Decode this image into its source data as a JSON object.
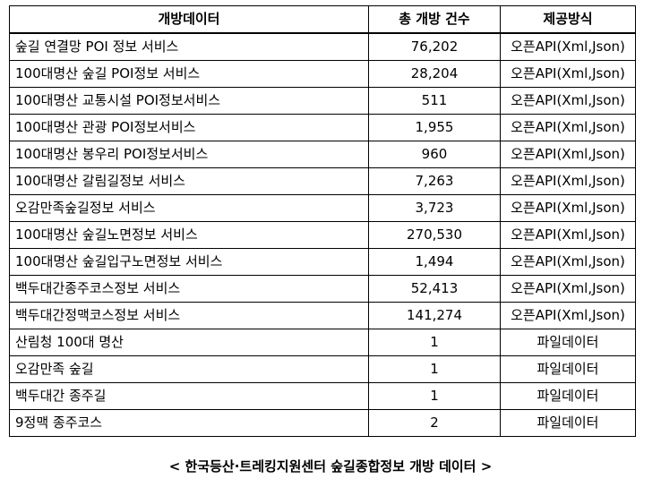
{
  "table": {
    "headers": [
      "개방데이터",
      "총 개방 건수",
      "제공방식"
    ],
    "rows": [
      {
        "name": "숲길 연결망 POI 정보 서비스",
        "count": "76,202",
        "method": "오픈API(Xml,Json)"
      },
      {
        "name": "100대명산 숲길 POI정보 서비스",
        "count": "28,204",
        "method": "오픈API(Xml,Json)"
      },
      {
        "name": "100대명산 교통시설 POI정보서비스",
        "count": "511",
        "method": "오픈API(Xml,Json)"
      },
      {
        "name": "100대명산 관광 POI정보서비스",
        "count": "1,955",
        "method": "오픈API(Xml,Json)"
      },
      {
        "name": "100대명산 봉우리 POI정보서비스",
        "count": "960",
        "method": "오픈API(Xml,Json)"
      },
      {
        "name": "100대명산 갈림길정보 서비스",
        "count": "7,263",
        "method": "오픈API(Xml,Json)"
      },
      {
        "name": "오감만족숲길정보 서비스",
        "count": "3,723",
        "method": "오픈API(Xml,Json)"
      },
      {
        "name": "100대명산 숲길노면정보 서비스",
        "count": "270,530",
        "method": "오픈API(Xml,Json)"
      },
      {
        "name": "100대명산 숲길입구노면정보 서비스",
        "count": "1,494",
        "method": "오픈API(Xml,Json)"
      },
      {
        "name": "백두대간종주코스정보 서비스",
        "count": "52,413",
        "method": "오픈API(Xml,Json)"
      },
      {
        "name": "백두대간정맥코스정보 서비스",
        "count": "141,274",
        "method": "오픈API(Xml,Json)"
      },
      {
        "name": "산림청 100대 명산",
        "count": "1",
        "method": "파일데이터"
      },
      {
        "name": "오감만족 숲길",
        "count": "1",
        "method": "파일데이터"
      },
      {
        "name": "백두대간 종주길",
        "count": "1",
        "method": "파일데이터"
      },
      {
        "name": "9정맥 종주코스",
        "count": "2",
        "method": "파일데이터"
      }
    ]
  },
  "caption": "< 한국등산·트레킹지원센터 숲길종합정보 개방 데이터 >"
}
